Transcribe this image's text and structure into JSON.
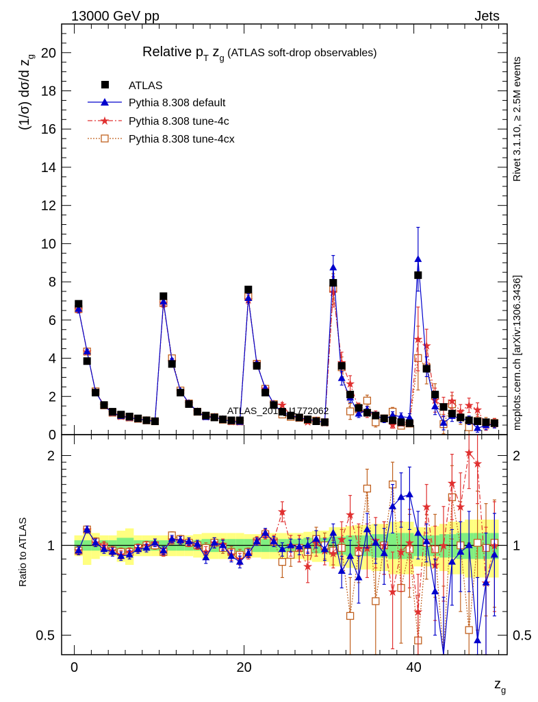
{
  "header": {
    "left": "13000 GeV pp",
    "right": "Jets"
  },
  "side": {
    "rivet": "Rivet 3.1.10, ≥ 2.5M events",
    "mcplots": "mcplots.cern.ch [arXiv:1306.3436]"
  },
  "chart_data": {
    "type": "scatter",
    "title_main": "Relative p",
    "title_sub": "T",
    "title_rest": " z",
    "title_g": "g",
    "title_small": " (ATLAS soft-drop observables)",
    "ylabel": "(1/σ) dσ/d z",
    "ylabel_sub": "g",
    "xlabel": "z",
    "xlabel_sub": "g",
    "ratio_ylabel": "Ratio to ATLAS",
    "watermark": "ATLAS_2019_I1772062",
    "xlim": [
      -1.5,
      51
    ],
    "ylim": [
      0,
      21.5
    ],
    "ratio_ylim": [
      0.43,
      2.35
    ],
    "ratio_log": true,
    "x_ticks": [
      "0",
      "20",
      "40"
    ],
    "y_ticks": [
      "0",
      "2",
      "4",
      "6",
      "8",
      "10",
      "12",
      "14",
      "16",
      "18",
      "20"
    ],
    "ratio_ticks": [
      "0.5",
      "1",
      "2"
    ],
    "legend_position": "top-left",
    "legend": [
      "ATLAS",
      "Pythia 8.308 default",
      "Pythia 8.308 tune-4c",
      "Pythia 8.308 tune-4cx"
    ],
    "colors": {
      "data": "#000000",
      "default": "#0000cc",
      "tune4c": "#e03030",
      "tune4cx": "#c0601e",
      "band_inner": "#80ee80",
      "band_outer": "#ffff80"
    },
    "x": [
      0.5,
      1.5,
      2.5,
      3.5,
      4.5,
      5.5,
      6.5,
      7.5,
      8.5,
      9.5,
      10.5,
      11.5,
      12.5,
      13.5,
      14.5,
      15.5,
      16.5,
      17.5,
      18.5,
      19.5,
      20.5,
      21.5,
      22.5,
      23.5,
      24.5,
      25.5,
      26.5,
      27.5,
      28.5,
      29.5,
      30.5,
      31.5,
      32.5,
      33.5,
      34.5,
      35.5,
      36.5,
      37.5,
      38.5,
      39.5,
      40.5,
      41.5,
      42.5,
      43.5,
      44.5,
      45.5,
      46.5,
      47.5,
      48.5,
      49.5
    ],
    "series": [
      {
        "name": "ATLAS",
        "values": [
          6.85,
          3.85,
          2.2,
          1.55,
          1.2,
          1.05,
          0.95,
          0.85,
          0.75,
          0.7,
          7.25,
          3.7,
          2.2,
          1.6,
          1.2,
          1.0,
          0.9,
          0.8,
          0.75,
          0.75,
          7.6,
          3.6,
          2.2,
          1.55,
          1.2,
          1.0,
          0.9,
          0.8,
          0.7,
          0.65,
          7.95,
          3.6,
          2.1,
          1.4,
          1.15,
          1.0,
          0.85,
          0.75,
          0.65,
          0.6,
          8.35,
          3.45,
          2.1,
          1.45,
          1.1,
          0.9,
          0.75,
          0.7,
          0.65,
          0.6
        ],
        "err": [
          0.1,
          0.1,
          0.08,
          0.05,
          0.04,
          0.04,
          0.04,
          0.03,
          0.03,
          0.03,
          0.15,
          0.1,
          0.08,
          0.05,
          0.04,
          0.04,
          0.04,
          0.03,
          0.03,
          0.03,
          0.15,
          0.1,
          0.08,
          0.05,
          0.04,
          0.04,
          0.04,
          0.03,
          0.03,
          0.03,
          0.2,
          0.12,
          0.08,
          0.06,
          0.05,
          0.05,
          0.04,
          0.04,
          0.04,
          0.04,
          0.2,
          0.12,
          0.08,
          0.06,
          0.05,
          0.05,
          0.04,
          0.04,
          0.04,
          0.04
        ]
      },
      {
        "name": "Pythia 8.308 default",
        "ratio": [
          0.96,
          1.13,
          1.02,
          0.97,
          0.95,
          0.92,
          0.93,
          0.97,
          0.98,
          1.02,
          0.96,
          1.05,
          1.04,
          1.03,
          1.01,
          0.91,
          1.02,
          1.0,
          0.92,
          0.88,
          0.94,
          1.03,
          1.1,
          1.03,
          0.97,
          1.0,
          0.99,
          1.0,
          1.05,
          0.97,
          1.1,
          0.82,
          0.92,
          0.78,
          1.13,
          1.02,
          0.94,
          1.35,
          1.45,
          1.48,
          1.1,
          1.03,
          0.7,
          0.42,
          0.88,
          0.95,
          1.0,
          0.48,
          0.75,
          0.93
        ],
        "ratio_err": [
          0.03,
          0.03,
          0.03,
          0.03,
          0.03,
          0.03,
          0.03,
          0.03,
          0.03,
          0.03,
          0.03,
          0.03,
          0.03,
          0.03,
          0.03,
          0.04,
          0.04,
          0.04,
          0.04,
          0.04,
          0.03,
          0.03,
          0.04,
          0.04,
          0.05,
          0.05,
          0.06,
          0.06,
          0.07,
          0.08,
          0.08,
          0.1,
          0.12,
          0.14,
          0.15,
          0.15,
          0.2,
          0.25,
          0.3,
          0.35,
          0.2,
          0.15,
          0.2,
          0.25,
          0.25,
          0.25,
          0.3,
          0.3,
          0.35,
          0.35
        ]
      },
      {
        "name": "Pythia 8.308 tune-4c",
        "ratio": [
          0.96,
          1.13,
          1.02,
          1.0,
          0.96,
          0.93,
          0.95,
          0.98,
          1.0,
          1.02,
          0.95,
          1.04,
          1.04,
          1.02,
          1.0,
          0.95,
          1.02,
          1.01,
          0.93,
          0.9,
          0.93,
          1.04,
          1.09,
          1.04,
          1.3,
          1.0,
          0.98,
          0.85,
          1.02,
          0.96,
          0.94,
          1.05,
          1.27,
          0.98,
          0.98,
          1.04,
          1.0,
          0.7,
          0.95,
          1.02,
          0.6,
          1.35,
          0.86,
          1.0,
          1.62,
          1.35,
          2.05,
          1.88,
          0.75,
          1.0
        ],
        "ratio_err": [
          0.03,
          0.03,
          0.03,
          0.03,
          0.03,
          0.03,
          0.03,
          0.03,
          0.03,
          0.03,
          0.03,
          0.03,
          0.03,
          0.03,
          0.03,
          0.04,
          0.04,
          0.04,
          0.04,
          0.04,
          0.03,
          0.03,
          0.04,
          0.04,
          0.1,
          0.08,
          0.1,
          0.1,
          0.1,
          0.1,
          0.1,
          0.15,
          0.2,
          0.2,
          0.2,
          0.2,
          0.2,
          0.25,
          0.25,
          0.3,
          0.2,
          0.25,
          0.3,
          0.35,
          0.4,
          0.4,
          0.5,
          0.5,
          0.4,
          0.4
        ]
      },
      {
        "name": "Pythia 8.308 tune-4cx",
        "ratio": [
          0.96,
          1.13,
          1.03,
          0.99,
          0.96,
          0.95,
          0.95,
          0.98,
          1.0,
          1.0,
          0.95,
          1.08,
          1.05,
          1.02,
          1.0,
          0.98,
          1.02,
          0.98,
          0.95,
          0.93,
          0.95,
          1.03,
          1.09,
          1.03,
          0.88,
          0.93,
          0.98,
          0.95,
          1.05,
          1.0,
          0.96,
          0.98,
          0.58,
          0.95,
          1.55,
          0.65,
          1.0,
          1.6,
          0.72,
          0.97,
          0.48,
          1.02,
          0.97,
          0.38,
          1.45,
          1.0,
          0.52,
          1.02,
          0.98,
          1.02
        ],
        "ratio_err": [
          0.03,
          0.03,
          0.03,
          0.03,
          0.03,
          0.03,
          0.03,
          0.03,
          0.03,
          0.03,
          0.03,
          0.03,
          0.03,
          0.03,
          0.03,
          0.04,
          0.04,
          0.04,
          0.04,
          0.04,
          0.03,
          0.03,
          0.04,
          0.04,
          0.1,
          0.08,
          0.1,
          0.1,
          0.1,
          0.1,
          0.1,
          0.15,
          0.2,
          0.2,
          0.25,
          0.25,
          0.2,
          0.3,
          0.25,
          0.3,
          0.2,
          0.25,
          0.3,
          0.35,
          0.4,
          0.4,
          0.5,
          0.5,
          0.4,
          0.4
        ]
      }
    ],
    "band_inner": [
      0.04,
      0.04,
      0.04,
      0.04,
      0.04,
      0.06,
      0.06,
      0.04,
      0.04,
      0.04,
      0.04,
      0.04,
      0.04,
      0.04,
      0.04,
      0.05,
      0.05,
      0.05,
      0.05,
      0.05,
      0.05,
      0.05,
      0.05,
      0.05,
      0.05,
      0.05,
      0.05,
      0.06,
      0.06,
      0.06,
      0.07,
      0.07,
      0.08,
      0.08,
      0.08,
      0.09,
      0.09,
      0.1,
      0.1,
      0.1,
      0.08,
      0.08,
      0.08,
      0.09,
      0.09,
      0.1,
      0.1,
      0.1,
      0.1,
      0.1
    ],
    "band_outer": [
      0.08,
      0.14,
      0.1,
      0.08,
      0.08,
      0.12,
      0.14,
      0.08,
      0.08,
      0.08,
      0.08,
      0.08,
      0.08,
      0.08,
      0.09,
      0.1,
      0.1,
      0.1,
      0.1,
      0.1,
      0.09,
      0.09,
      0.1,
      0.1,
      0.1,
      0.1,
      0.1,
      0.11,
      0.12,
      0.12,
      0.15,
      0.15,
      0.16,
      0.17,
      0.17,
      0.18,
      0.18,
      0.2,
      0.2,
      0.2,
      0.15,
      0.15,
      0.16,
      0.18,
      0.2,
      0.2,
      0.22,
      0.22,
      0.22,
      0.22
    ]
  }
}
